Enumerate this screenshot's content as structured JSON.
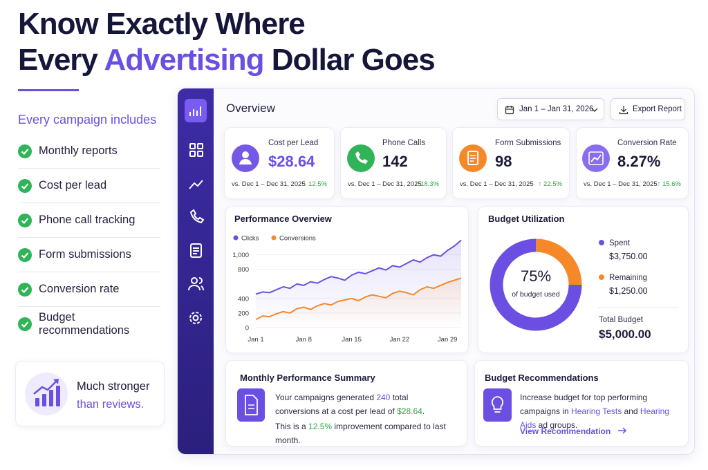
{
  "header": {
    "title_line1": "Know Exactly Where",
    "title_line2_start": "Every",
    "title_line2_highlight": "Advertising",
    "title_line2_end": "Dollar Goes"
  },
  "features": {
    "heading": "Every campaign includes",
    "items": [
      "Monthly reports",
      "Cost per lead",
      "Phone call tracking",
      "Form submissions",
      "Conversion rate",
      "Budget recommendations"
    ]
  },
  "promo": {
    "line1": "Much stronger",
    "line2": "than reviews."
  },
  "dashboard": {
    "title": "Overview",
    "date_range": "Jan 1 – Jan 31, 2026",
    "export": "Export Report",
    "kpis": [
      {
        "label": "Cost per Lead",
        "value": "$28.64",
        "comparison": "vs. Dec 1 – Dec 31, 2025",
        "change": "↓ 12.5%"
      },
      {
        "label": "Phone Calls",
        "value": "142",
        "comparison": "vs. Dec 1 – Dec 31, 2025",
        "change": "↑ 18.3%"
      },
      {
        "label": "Form Submissions",
        "value": "98",
        "comparison": "vs. Dec 1 – Dec 31,  2025",
        "change": "↑ 22.5%"
      },
      {
        "label": "Conversion Rate",
        "value": "8.27%",
        "comparison": "vs. Dec 1 – Dec 31, 2025",
        "change": "↑ 15.6%"
      }
    ],
    "performance": {
      "type": "line",
      "title": "Performance Overview",
      "categories": [
        "Jan 1",
        null,
        null,
        null,
        null,
        null,
        null,
        "Jan 8",
        null,
        null,
        null,
        null,
        null,
        null,
        "Jan 15",
        null,
        null,
        null,
        null,
        null,
        null,
        "Jan 22",
        null,
        null,
        null,
        null,
        null,
        null,
        "Jan 29",
        null,
        null
      ],
      "series": [
        {
          "name": "Clicks",
          "color": "#6b4fe3",
          "values": [
            460,
            490,
            480,
            520,
            560,
            540,
            600,
            580,
            630,
            610,
            660,
            700,
            680,
            650,
            720,
            760,
            740,
            780,
            820,
            790,
            850,
            830,
            880,
            930,
            900,
            960,
            1000,
            980,
            1060,
            1120,
            1200
          ]
        },
        {
          "name": "Conversions",
          "color": "#f08a2c",
          "values": [
            110,
            160,
            150,
            190,
            220,
            200,
            260,
            280,
            250,
            300,
            330,
            310,
            360,
            380,
            400,
            370,
            420,
            450,
            430,
            410,
            470,
            500,
            480,
            450,
            520,
            560,
            540,
            580,
            620,
            650,
            680
          ]
        }
      ],
      "ylim": [
        0,
        1300
      ],
      "yticks": [
        0,
        200,
        400,
        800,
        {
          "value": 1000,
          "label": "1,000"
        }
      ]
    },
    "budget": {
      "type": "pie",
      "title": "Budget Utilization",
      "categories": [
        "Spent",
        "Remaining"
      ],
      "values": [
        3750,
        1250
      ],
      "value_labels": [
        "$3,750.00",
        "$1,250.00"
      ],
      "colors": [
        "#6b4fe3",
        "#f5892a"
      ],
      "center_value": "75%",
      "center_label": "of budget used",
      "total_label": "Total Budget",
      "total_value": "$5,000.00"
    },
    "summary": {
      "title": "Monthly Performance Summary",
      "p1": [
        "Your campaigns generated ",
        "240",
        " total conversions at a cost per lead of ",
        "$28.64",
        "."
      ],
      "p2": [
        "This is a ",
        "12.5%",
        " improvement compared to last month."
      ]
    },
    "recommendations": {
      "title": "Budget Recommendations",
      "text": [
        "Increase budget for top performing campaigns in ",
        "Hearing Tests",
        " and ",
        "Hearing Aids",
        " ad groups."
      ],
      "link": "View Recommendation"
    }
  }
}
